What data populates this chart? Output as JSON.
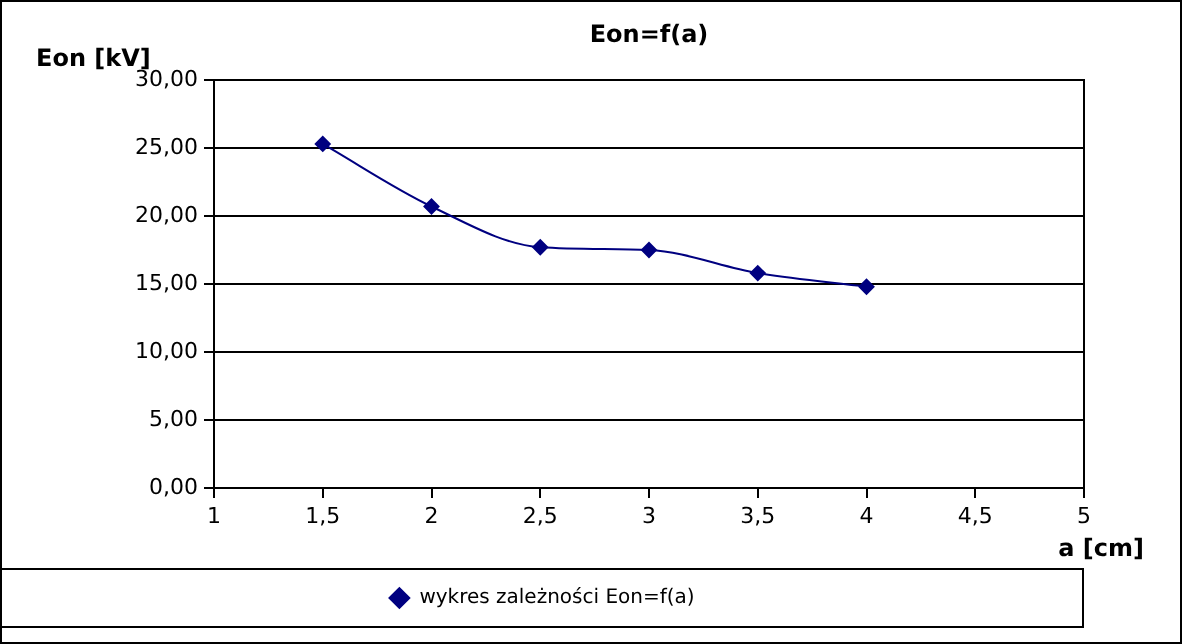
{
  "chart_data": {
    "type": "line",
    "title": "Eon=f(a)",
    "xlabel": "a [cm]",
    "ylabel": "Eon [kV]",
    "x": [
      1.5,
      2,
      2.5,
      3,
      3.5,
      4
    ],
    "series": [
      {
        "name": "wykres zależności Eon=f(a)",
        "color": "#000080",
        "values": [
          25.3,
          20.7,
          17.7,
          17.5,
          15.8,
          14.8
        ]
      }
    ],
    "xlim": [
      1,
      5
    ],
    "xticks": [
      1,
      {
        "value": 1.5,
        "label": "1,5"
      },
      2,
      {
        "value": 2.5,
        "label": "2,5"
      },
      3,
      {
        "value": 3.5,
        "label": "3,5"
      },
      4,
      {
        "value": 4.5,
        "label": "4,5"
      },
      5
    ],
    "ylim": [
      0,
      30
    ],
    "yticks": [
      {
        "value": 0,
        "label": "0,00"
      },
      {
        "value": 5,
        "label": "5,00"
      },
      {
        "value": 10,
        "label": "10,00"
      },
      {
        "value": 15,
        "label": "15,00"
      },
      {
        "value": 20,
        "label": "20,00"
      },
      {
        "value": 25,
        "label": "25,00"
      },
      {
        "value": 30,
        "label": "30,00"
      }
    ],
    "grid": "y",
    "legend": "bottom",
    "marker": "diamond",
    "line_style": "solid"
  }
}
